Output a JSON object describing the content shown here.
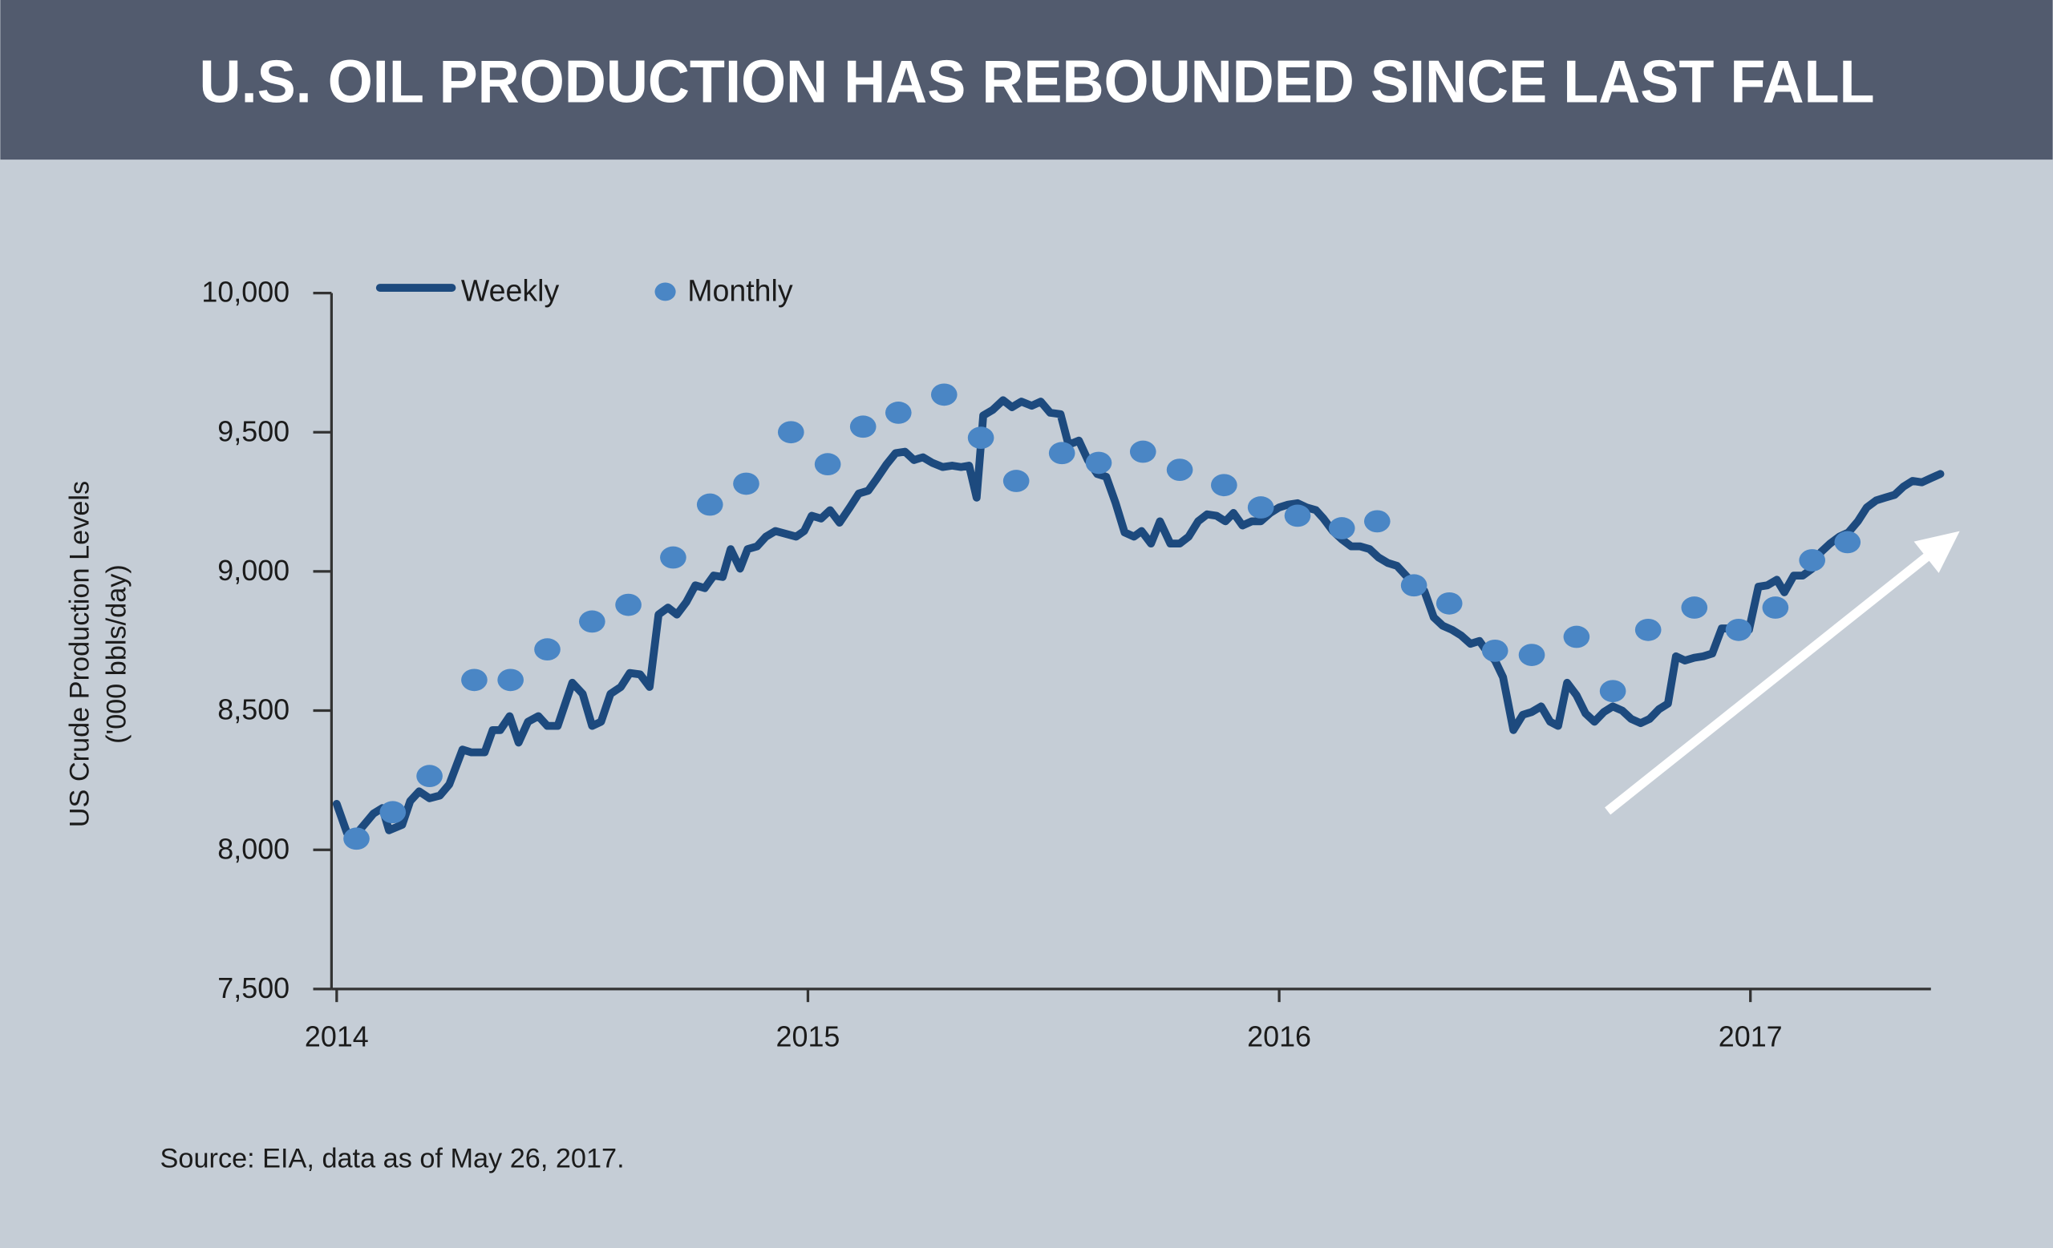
{
  "chart_data": {
    "type": "line",
    "title": "U.S. OIL PRODUCTION HAS REBOUNDED SINCE LAST FALL",
    "ylabel": [
      "US Crude Production Levels",
      "('000 bbls/day)"
    ],
    "source": "Source: EIA, data as of May 26, 2017.",
    "xlim": [
      2013.989,
      2017.383
    ],
    "xticks": [
      2014,
      2015,
      2016,
      2017
    ],
    "ylim": [
      7500,
      10000
    ],
    "yticks": [
      {
        "value": 7500,
        "label": "7,500"
      },
      {
        "value": 8000,
        "label": "8,000"
      },
      {
        "value": 8500,
        "label": "8,500"
      },
      {
        "value": 9000,
        "label": "9,000"
      },
      {
        "value": 9500,
        "label": "9,500"
      },
      {
        "value": 10000,
        "label": "10,000"
      }
    ],
    "legend": "top-left",
    "series": [
      {
        "name": "Weekly",
        "kind": "line",
        "color": "#1d4a7e",
        "x": [
          2014.0,
          2014.022,
          2014.036,
          2014.078,
          2014.097,
          2014.111,
          2014.139,
          2014.156,
          2014.175,
          2014.197,
          2014.219,
          2014.239,
          2014.267,
          2014.286,
          2014.314,
          2014.331,
          2014.347,
          2014.367,
          2014.386,
          2014.406,
          2014.428,
          2014.447,
          2014.469,
          2014.5,
          2014.522,
          2014.542,
          2014.561,
          2014.581,
          2014.603,
          2014.622,
          2014.644,
          2014.664,
          2014.683,
          2014.703,
          2014.722,
          2014.742,
          2014.761,
          2014.781,
          2014.8,
          2014.819,
          2014.836,
          2014.856,
          2014.872,
          2014.892,
          2014.911,
          2014.931,
          2014.953,
          2014.975,
          2014.992,
          2015.008,
          2015.028,
          2015.047,
          2015.067,
          2015.089,
          2015.108,
          2015.128,
          2015.147,
          2015.167,
          2015.186,
          2015.206,
          2015.225,
          2015.244,
          2015.264,
          2015.286,
          2015.306,
          2015.325,
          2015.342,
          2015.358,
          2015.372,
          2015.392,
          2015.414,
          2015.433,
          2015.453,
          2015.475,
          2015.494,
          2015.514,
          2015.536,
          2015.553,
          2015.575,
          2015.594,
          2015.614,
          2015.633,
          2015.653,
          2015.672,
          2015.692,
          2015.708,
          2015.728,
          2015.747,
          2015.769,
          2015.789,
          2015.808,
          2015.828,
          2015.847,
          2015.867,
          2015.886,
          2015.903,
          2015.922,
          2015.942,
          2015.961,
          2015.981,
          2016.0,
          2016.019,
          2016.039,
          2016.058,
          2016.078,
          2016.094,
          2016.114,
          2016.133,
          2016.153,
          2016.172,
          2016.192,
          2016.211,
          2016.231,
          2016.25,
          2016.269,
          2016.289,
          2016.308,
          2016.328,
          2016.347,
          2016.367,
          2016.386,
          2016.406,
          2016.425,
          2016.444,
          2016.458,
          2016.475,
          2016.497,
          2016.517,
          2016.536,
          2016.556,
          2016.575,
          2016.592,
          2016.611,
          2016.631,
          2016.65,
          2016.669,
          2016.689,
          2016.708,
          2016.728,
          2016.747,
          2016.767,
          2016.786,
          2016.806,
          2016.825,
          2016.842,
          2016.861,
          2016.881,
          2016.9,
          2016.919,
          2016.939,
          2016.958,
          2016.978,
          2016.997,
          2017.017,
          2017.036,
          2017.056,
          2017.072,
          2017.092,
          2017.111,
          2017.131,
          2017.15,
          2017.169,
          2017.189,
          2017.208,
          2017.228,
          2017.247,
          2017.267,
          2017.286,
          2017.306,
          2017.325,
          2017.344,
          2017.364,
          2017.383,
          2017.403
        ],
        "values": [
          8165,
          8060,
          8045,
          8130,
          8150,
          8070,
          8090,
          8175,
          8210,
          8185,
          8195,
          8235,
          8360,
          8350,
          8350,
          8430,
          8430,
          8480,
          8385,
          8460,
          8480,
          8445,
          8445,
          8600,
          8560,
          8445,
          8460,
          8560,
          8585,
          8635,
          8630,
          8585,
          8845,
          8870,
          8845,
          8890,
          8950,
          8940,
          8985,
          8980,
          9080,
          9010,
          9080,
          9090,
          9125,
          9145,
          9135,
          9125,
          9145,
          9200,
          9190,
          9220,
          9175,
          9230,
          9280,
          9290,
          9335,
          9385,
          9425,
          9430,
          9400,
          9410,
          9390,
          9375,
          9380,
          9375,
          9380,
          9265,
          9560,
          9580,
          9615,
          9590,
          9610,
          9595,
          9610,
          9570,
          9565,
          9455,
          9470,
          9400,
          9350,
          9340,
          9245,
          9140,
          9125,
          9145,
          9100,
          9180,
          9100,
          9100,
          9125,
          9180,
          9205,
          9200,
          9180,
          9210,
          9165,
          9180,
          9180,
          9210,
          9230,
          9240,
          9245,
          9230,
          9220,
          9190,
          9145,
          9115,
          9090,
          9090,
          9080,
          9050,
          9030,
          9020,
          8985,
          8950,
          8930,
          8835,
          8805,
          8790,
          8770,
          8740,
          8750,
          8705,
          8680,
          8620,
          8430,
          8485,
          8495,
          8515,
          8460,
          8445,
          8600,
          8555,
          8490,
          8460,
          8495,
          8515,
          8500,
          8470,
          8455,
          8470,
          8505,
          8525,
          8695,
          8680,
          8690,
          8695,
          8705,
          8795,
          8795,
          8775,
          8790,
          8945,
          8950,
          8970,
          8925,
          8985,
          8985,
          9010,
          9070,
          9100,
          9125,
          9140,
          9180,
          9230,
          9255,
          9265,
          9275,
          9305,
          9325,
          9320,
          9335,
          9350
        ]
      },
      {
        "name": "Monthly",
        "kind": "dots",
        "color": "#4a86c5",
        "x": [
          2014.042,
          2014.119,
          2014.197,
          2014.292,
          2014.369,
          2014.447,
          2014.542,
          2014.619,
          2014.714,
          2014.792,
          2014.869,
          2014.964,
          2015.042,
          2015.117,
          2015.192,
          2015.289,
          2015.367,
          2015.442,
          2015.539,
          2015.617,
          2015.711,
          2015.789,
          2015.883,
          2015.961,
          2016.039,
          2016.133,
          2016.208,
          2016.286,
          2016.361,
          2016.458,
          2016.536,
          2016.631,
          2016.708,
          2016.783,
          2016.881,
          2016.975,
          2017.053,
          2017.131,
          2017.206
        ],
        "values": [
          8040,
          8135,
          8265,
          8610,
          8610,
          8720,
          8820,
          8880,
          9050,
          9240,
          9315,
          9500,
          9385,
          9520,
          9570,
          9635,
          9480,
          9325,
          9425,
          9390,
          9430,
          9365,
          9310,
          9230,
          9200,
          9155,
          9180,
          8950,
          8885,
          8715,
          8700,
          8765,
          8570,
          8790,
          8870,
          8790,
          8870,
          9040,
          9105
        ]
      }
    ]
  }
}
